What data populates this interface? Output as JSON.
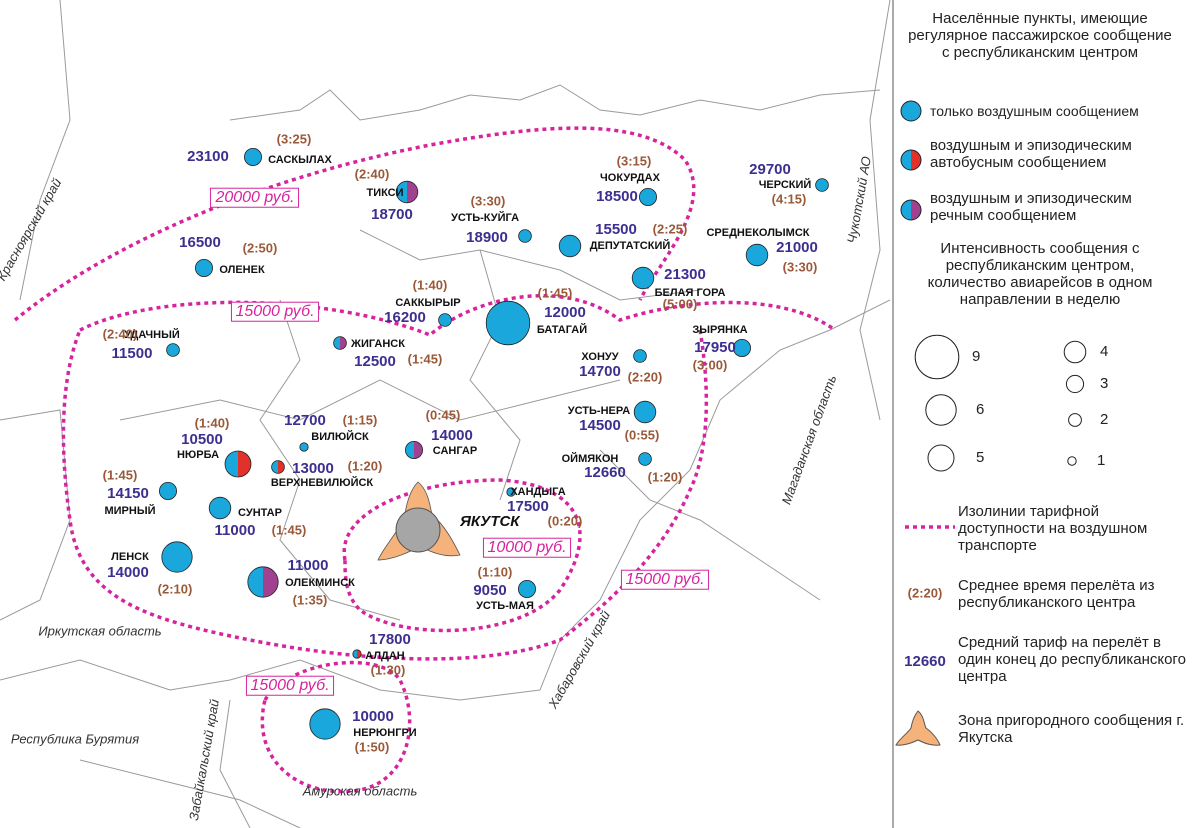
{
  "map": {
    "regions": [
      "Красноярский край",
      "Чукотский АО",
      "Магаданская область",
      "Хабаровский край",
      "Иркутская область",
      "Республика Бурятия",
      "Забайкальский край",
      "Амурская область"
    ],
    "isoline_labels": [
      "20000 руб.",
      "15000 руб.",
      "15000 руб.",
      "15000 руб.",
      "10000 руб."
    ],
    "isoline_color": "#d6249f",
    "center": {
      "name": "ЯКУТСК",
      "color": "#a6a6a6",
      "zone_color": "#f5b27a"
    },
    "settlements": [
      {
        "name": "САСКЫЛАХ",
        "price": 23100,
        "time": "(3:25)",
        "flights": 3,
        "colors": [
          "#1aa7dc"
        ]
      },
      {
        "name": "ТИКСИ",
        "price": 18700,
        "time": "(2:40)",
        "flights": 4,
        "colors": [
          "#1aa7dc",
          "#a0428f"
        ]
      },
      {
        "name": "УСТЬ-КУЙГА",
        "price": 18900,
        "time": "(3:30)",
        "flights": 2,
        "colors": [
          "#1aa7dc"
        ]
      },
      {
        "name": "ЧОКУРДАХ",
        "price": 18500,
        "time": "(3:15)",
        "flights": 3,
        "colors": [
          "#1aa7dc"
        ]
      },
      {
        "name": "ДЕПУТАТСКИЙ",
        "price": 15500,
        "time": "(2:25)",
        "flights": 4,
        "colors": [
          "#1aa7dc"
        ]
      },
      {
        "name": "ЧЕРСКИЙ",
        "price": 29700,
        "time": "(4:15)",
        "flights": 2,
        "colors": [
          "#1aa7dc"
        ]
      },
      {
        "name": "СРЕДНЕКОЛЫМСК",
        "price": 21000,
        "time": "(3:30)",
        "flights": 4,
        "colors": [
          "#1aa7dc"
        ]
      },
      {
        "name": "ОЛЕНЕК",
        "price": 16500,
        "time": "(2:50)",
        "flights": 3,
        "colors": [
          "#1aa7dc"
        ]
      },
      {
        "name": "БЕЛАЯ ГОРА",
        "price": 21300,
        "time": "(5:00)",
        "flights": 4,
        "colors": [
          "#1aa7dc"
        ]
      },
      {
        "name": "САККЫРЫР",
        "price": 16200,
        "time": "(1:40)",
        "flights": 2,
        "colors": [
          "#1aa7dc"
        ]
      },
      {
        "name": "БАТАГАЙ",
        "price": 12000,
        "time": "(1:45)",
        "flights": 9,
        "colors": [
          "#1aa7dc"
        ]
      },
      {
        "name": "УДАЧНЫЙ",
        "price": 11500,
        "time": "(2:40)",
        "flights": 2,
        "colors": [
          "#1aa7dc"
        ]
      },
      {
        "name": "ЖИГАНСК",
        "price": 12500,
        "time": "(1:45)",
        "flights": 2,
        "colors": [
          "#1aa7dc",
          "#a0428f"
        ]
      },
      {
        "name": "ЗЫРЯНКА",
        "price": 17950,
        "time": "(3:00)",
        "flights": 3,
        "colors": [
          "#1aa7dc"
        ]
      },
      {
        "name": "ХОНУУ",
        "price": 14700,
        "time": "(2:20)",
        "flights": 2,
        "colors": [
          "#1aa7dc"
        ]
      },
      {
        "name": "УСТЬ-НЕРА",
        "price": 14500,
        "time": "(0:55)",
        "flights": 4,
        "colors": [
          "#1aa7dc"
        ]
      },
      {
        "name": "ОЙМЯКОН",
        "price": 12660,
        "time": "(1:20)",
        "flights": 2,
        "colors": [
          "#1aa7dc"
        ]
      },
      {
        "name": "ВИЛЮЙСК",
        "price": 12700,
        "time": "(1:15)",
        "flights": 1,
        "colors": [
          "#1aa7dc"
        ]
      },
      {
        "name": "ВЕРХНЕВИЛЮЙСК",
        "price": 13000,
        "time": "(1:20)",
        "flights": 2,
        "colors": [
          "#1aa7dc",
          "#e0312b"
        ]
      },
      {
        "name": "НЮРБА",
        "price": 10500,
        "time": "(1:40)",
        "flights": 5,
        "colors": [
          "#1aa7dc",
          "#e0312b"
        ]
      },
      {
        "name": "САНГАР",
        "price": 14000,
        "time": "(0:45)",
        "flights": 3,
        "colors": [
          "#1aa7dc",
          "#a0428f"
        ]
      },
      {
        "name": "МИРНЫЙ",
        "price": 14150,
        "time": "(1:45)",
        "flights": 3,
        "colors": [
          "#1aa7dc"
        ]
      },
      {
        "name": "СУНТАР",
        "price": 11000,
        "time": "(1:45)",
        "flights": 4,
        "colors": [
          "#1aa7dc"
        ]
      },
      {
        "name": "ХАНДЫГА",
        "price": 17500,
        "time": "(0:20)",
        "flights": 1,
        "colors": [
          "#1aa7dc"
        ]
      },
      {
        "name": "ЛЕНСК",
        "price": 14000,
        "time": "(2:10)",
        "flights": 6,
        "colors": [
          "#1aa7dc"
        ]
      },
      {
        "name": "ОЛЕКМИНСК",
        "price": 11000,
        "time": "(1:35)",
        "flights": 6,
        "colors": [
          "#1aa7dc",
          "#a0428f"
        ]
      },
      {
        "name": "УСТЬ-МАЯ",
        "price": 9050,
        "time": "(1:10)",
        "flights": 3,
        "colors": [
          "#1aa7dc"
        ]
      },
      {
        "name": "АЛДАН",
        "price": 17800,
        "time": "(1:30)",
        "flights": 1,
        "colors": [
          "#1aa7dc",
          "#e0312b"
        ]
      },
      {
        "name": "НЕРЮНГРИ",
        "price": 10000,
        "time": "(1:50)",
        "flights": 6,
        "colors": [
          "#1aa7dc"
        ]
      }
    ]
  },
  "legend": {
    "title": "Населённые пункты, имеющие регулярное пассажирское сообщение с республиканским центром",
    "service": [
      {
        "label": "только воздушным сообщением",
        "colors": [
          "#1aa7dc"
        ]
      },
      {
        "label": "воздушным и эпизодическим автобусным сообщением",
        "colors": [
          "#1aa7dc",
          "#e0312b"
        ]
      },
      {
        "label": "воздушным и эпизодическим речным сообщением",
        "colors": [
          "#1aa7dc",
          "#a0428f"
        ]
      }
    ],
    "size_title": "Интенсивность сообщения с республиканским центром, количество авиарейсов в одном направлении в неделю",
    "sizes": [
      9,
      6,
      5,
      4,
      3,
      2,
      1
    ],
    "isoline_text": "Изолинии тарифной доступности на воздушном транспорте",
    "time_sample": "(2:20)",
    "time_text": "Среднее время перелёта из республиканского центра",
    "price_sample": 12660,
    "price_text": "Средний тариф на перелёт в один конец до республиканского центра",
    "zone_text": "Зона пригородного сообщения г. Якутска"
  }
}
